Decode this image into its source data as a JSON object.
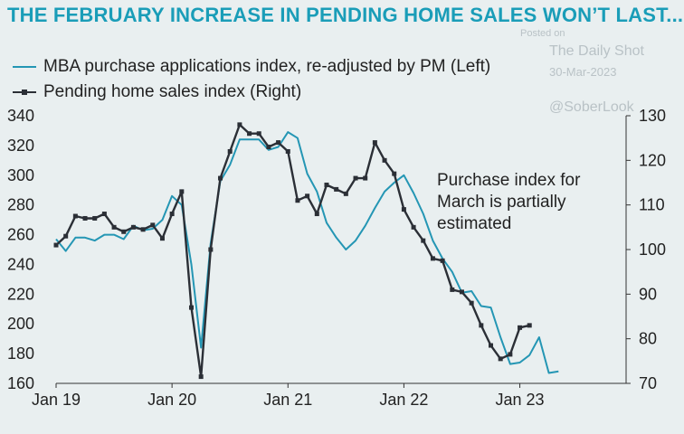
{
  "chart_data": {
    "type": "line",
    "title": "THE FEBRUARY INCREASE IN PENDING HOME SALES WON’T LAST...",
    "annotation": [
      "Purchase index for",
      "March is partially",
      "estimated"
    ],
    "watermark": {
      "posted": "Posted on",
      "source": "The Daily Shot",
      "date": "30-Mar-2023",
      "handle": "@SoberLook"
    },
    "x_ticks": [
      "Jan 19",
      "Jan 20",
      "Jan 21",
      "Jan 22",
      "Jan 23"
    ],
    "x_range": [
      "2019-01",
      "2023-12"
    ],
    "y_left": {
      "range": [
        160,
        340
      ],
      "ticks": [
        160,
        180,
        200,
        220,
        240,
        260,
        280,
        300,
        320,
        340
      ]
    },
    "y_right": {
      "range": [
        70,
        130
      ],
      "ticks": [
        70,
        80,
        90,
        100,
        110,
        120,
        130
      ]
    },
    "series": [
      {
        "name": "MBA purchase applications index, re-adjusted by PM (Left)",
        "axis": "left",
        "color": "#2496b4",
        "marker": false,
        "values": [
          {
            "x": "2019-01",
            "y": 257
          },
          {
            "x": "2019-02",
            "y": 249
          },
          {
            "x": "2019-03",
            "y": 258
          },
          {
            "x": "2019-04",
            "y": 258
          },
          {
            "x": "2019-05",
            "y": 256
          },
          {
            "x": "2019-06",
            "y": 260
          },
          {
            "x": "2019-07",
            "y": 260
          },
          {
            "x": "2019-08",
            "y": 257
          },
          {
            "x": "2019-09",
            "y": 266
          },
          {
            "x": "2019-10",
            "y": 263
          },
          {
            "x": "2019-11",
            "y": 264
          },
          {
            "x": "2019-12",
            "y": 270
          },
          {
            "x": "2020-01",
            "y": 286
          },
          {
            "x": "2020-02",
            "y": 280
          },
          {
            "x": "2020-03",
            "y": 240
          },
          {
            "x": "2020-04",
            "y": 184
          },
          {
            "x": "2020-05",
            "y": 254
          },
          {
            "x": "2020-06",
            "y": 296
          },
          {
            "x": "2020-07",
            "y": 307
          },
          {
            "x": "2020-08",
            "y": 324
          },
          {
            "x": "2020-09",
            "y": 324
          },
          {
            "x": "2020-10",
            "y": 324
          },
          {
            "x": "2020-11",
            "y": 317
          },
          {
            "x": "2020-12",
            "y": 319
          },
          {
            "x": "2021-01",
            "y": 329
          },
          {
            "x": "2021-02",
            "y": 325
          },
          {
            "x": "2021-03",
            "y": 301
          },
          {
            "x": "2021-04",
            "y": 289
          },
          {
            "x": "2021-05",
            "y": 268
          },
          {
            "x": "2021-06",
            "y": 258
          },
          {
            "x": "2021-07",
            "y": 250
          },
          {
            "x": "2021-08",
            "y": 256
          },
          {
            "x": "2021-09",
            "y": 266
          },
          {
            "x": "2021-10",
            "y": 278
          },
          {
            "x": "2021-11",
            "y": 289
          },
          {
            "x": "2021-12",
            "y": 295
          },
          {
            "x": "2022-01",
            "y": 300
          },
          {
            "x": "2022-02",
            "y": 288
          },
          {
            "x": "2022-03",
            "y": 274
          },
          {
            "x": "2022-04",
            "y": 256
          },
          {
            "x": "2022-05",
            "y": 244
          },
          {
            "x": "2022-06",
            "y": 235
          },
          {
            "x": "2022-07",
            "y": 221
          },
          {
            "x": "2022-08",
            "y": 222
          },
          {
            "x": "2022-09",
            "y": 212
          },
          {
            "x": "2022-10",
            "y": 211
          },
          {
            "x": "2022-11",
            "y": 191
          },
          {
            "x": "2022-12",
            "y": 173
          },
          {
            "x": "2023-01",
            "y": 174
          },
          {
            "x": "2023-02",
            "y": 179
          },
          {
            "x": "2023-03",
            "y": 191
          },
          {
            "x": "2023-04",
            "y": 167
          },
          {
            "x": "2023-05",
            "y": 168
          }
        ]
      },
      {
        "name": "Pending home sales index (Right)",
        "axis": "right",
        "color": "#2b2f36",
        "marker": true,
        "values": [
          {
            "x": "2019-01",
            "y": 101
          },
          {
            "x": "2019-02",
            "y": 103
          },
          {
            "x": "2019-03",
            "y": 107.5
          },
          {
            "x": "2019-04",
            "y": 107
          },
          {
            "x": "2019-05",
            "y": 107
          },
          {
            "x": "2019-06",
            "y": 108
          },
          {
            "x": "2019-07",
            "y": 105
          },
          {
            "x": "2019-08",
            "y": 104
          },
          {
            "x": "2019-09",
            "y": 105
          },
          {
            "x": "2019-10",
            "y": 104.5
          },
          {
            "x": "2019-11",
            "y": 105.5
          },
          {
            "x": "2019-12",
            "y": 102.5
          },
          {
            "x": "2020-01",
            "y": 108
          },
          {
            "x": "2020-02",
            "y": 113
          },
          {
            "x": "2020-03",
            "y": 87
          },
          {
            "x": "2020-04",
            "y": 71.5
          },
          {
            "x": "2020-05",
            "y": 100
          },
          {
            "x": "2020-06",
            "y": 116
          },
          {
            "x": "2020-07",
            "y": 122
          },
          {
            "x": "2020-08",
            "y": 128
          },
          {
            "x": "2020-09",
            "y": 126
          },
          {
            "x": "2020-10",
            "y": 126
          },
          {
            "x": "2020-11",
            "y": 123
          },
          {
            "x": "2020-12",
            "y": 124
          },
          {
            "x": "2021-01",
            "y": 122
          },
          {
            "x": "2021-02",
            "y": 111
          },
          {
            "x": "2021-03",
            "y": 112
          },
          {
            "x": "2021-04",
            "y": 108
          },
          {
            "x": "2021-05",
            "y": 114.5
          },
          {
            "x": "2021-06",
            "y": 113.5
          },
          {
            "x": "2021-07",
            "y": 112.5
          },
          {
            "x": "2021-08",
            "y": 116
          },
          {
            "x": "2021-09",
            "y": 116
          },
          {
            "x": "2021-10",
            "y": 124
          },
          {
            "x": "2021-11",
            "y": 120
          },
          {
            "x": "2021-12",
            "y": 117
          },
          {
            "x": "2022-01",
            "y": 109
          },
          {
            "x": "2022-02",
            "y": 105
          },
          {
            "x": "2022-03",
            "y": 102
          },
          {
            "x": "2022-04",
            "y": 98
          },
          {
            "x": "2022-05",
            "y": 97.5
          },
          {
            "x": "2022-06",
            "y": 91
          },
          {
            "x": "2022-07",
            "y": 90.5
          },
          {
            "x": "2022-08",
            "y": 88
          },
          {
            "x": "2022-09",
            "y": 83
          },
          {
            "x": "2022-10",
            "y": 78.5
          },
          {
            "x": "2022-11",
            "y": 75.5
          },
          {
            "x": "2022-12",
            "y": 76.5
          },
          {
            "x": "2023-01",
            "y": 82.5
          },
          {
            "x": "2023-02",
            "y": 83
          }
        ]
      }
    ]
  }
}
